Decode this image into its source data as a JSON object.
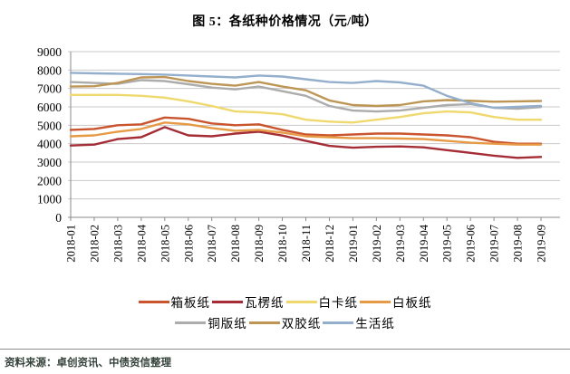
{
  "figure": {
    "title": "图 5：各纸种价格情况（元/吨）",
    "source_note": "资料来源：卓创资讯、中债资信整理"
  },
  "colors": {
    "grid": "#c9c9c9",
    "axis": "#8a8a8a",
    "tick_text": "#000000",
    "source_text": "#33413a"
  },
  "chart_data": {
    "type": "line",
    "title": "图 5：各纸种价格情况（元/吨）",
    "xlabel": "",
    "ylabel": "",
    "unit": "元/吨",
    "ylim": [
      0,
      9000
    ],
    "ytick_step": 1000,
    "grid": true,
    "legend_position": "bottom",
    "x": [
      "2018-01",
      "2018-02",
      "2018-03",
      "2018-04",
      "2018-05",
      "2018-06",
      "2018-07",
      "2018-08",
      "2018-09",
      "2018-10",
      "2018-11",
      "2018-12",
      "2019-01",
      "2019-02",
      "2019-03",
      "2019-04",
      "2019-05",
      "2019-06",
      "2019-07",
      "2019-08",
      "2019-09"
    ],
    "series": [
      {
        "name": "箱板纸",
        "color": "#c9542e",
        "values": [
          4750,
          4800,
          5000,
          5050,
          5420,
          5350,
          5100,
          5000,
          5050,
          4750,
          4500,
          4450,
          4500,
          4550,
          4550,
          4500,
          4450,
          4350,
          4100,
          4000,
          4000
        ]
      },
      {
        "name": "瓦楞纸",
        "color": "#a42d36",
        "values": [
          3900,
          3950,
          4250,
          4350,
          4900,
          4450,
          4400,
          4550,
          4650,
          4440,
          4150,
          3880,
          3780,
          3830,
          3850,
          3800,
          3650,
          3500,
          3350,
          3230,
          3280
        ]
      },
      {
        "name": "白卡纸",
        "color": "#efd96f",
        "values": [
          6650,
          6650,
          6650,
          6600,
          6500,
          6300,
          6050,
          5750,
          5700,
          5600,
          5300,
          5200,
          5150,
          5300,
          5450,
          5650,
          5750,
          5700,
          5450,
          5300,
          5300
        ]
      },
      {
        "name": "白板纸",
        "color": "#e79a45",
        "values": [
          4400,
          4450,
          4650,
          4800,
          5150,
          5050,
          4850,
          4700,
          4750,
          4600,
          4400,
          4350,
          4300,
          4300,
          4280,
          4250,
          4150,
          4050,
          4000,
          3950,
          3950
        ]
      },
      {
        "name": "铜版纸",
        "color": "#acacac",
        "values": [
          7350,
          7300,
          7250,
          7450,
          7400,
          7230,
          7050,
          6950,
          7100,
          6850,
          6600,
          6050,
          5800,
          5750,
          5800,
          5950,
          6100,
          6150,
          5950,
          5900,
          5990
        ]
      },
      {
        "name": "双胶纸",
        "color": "#bd9656",
        "values": [
          7100,
          7120,
          7300,
          7600,
          7620,
          7400,
          7250,
          7150,
          7350,
          7100,
          6900,
          6350,
          6100,
          6050,
          6100,
          6300,
          6370,
          6330,
          6280,
          6300,
          6320
        ]
      },
      {
        "name": "生活纸",
        "color": "#94afcc",
        "values": [
          7850,
          7820,
          7800,
          7780,
          7750,
          7700,
          7650,
          7600,
          7700,
          7650,
          7500,
          7350,
          7300,
          7400,
          7330,
          7150,
          6600,
          6200,
          5950,
          6000,
          6050
        ]
      }
    ],
    "legend_rows": [
      [
        "箱板纸",
        "瓦楞纸",
        "白卡纸",
        "白板纸"
      ],
      [
        "铜版纸",
        "双胶纸",
        "生活纸"
      ]
    ]
  }
}
